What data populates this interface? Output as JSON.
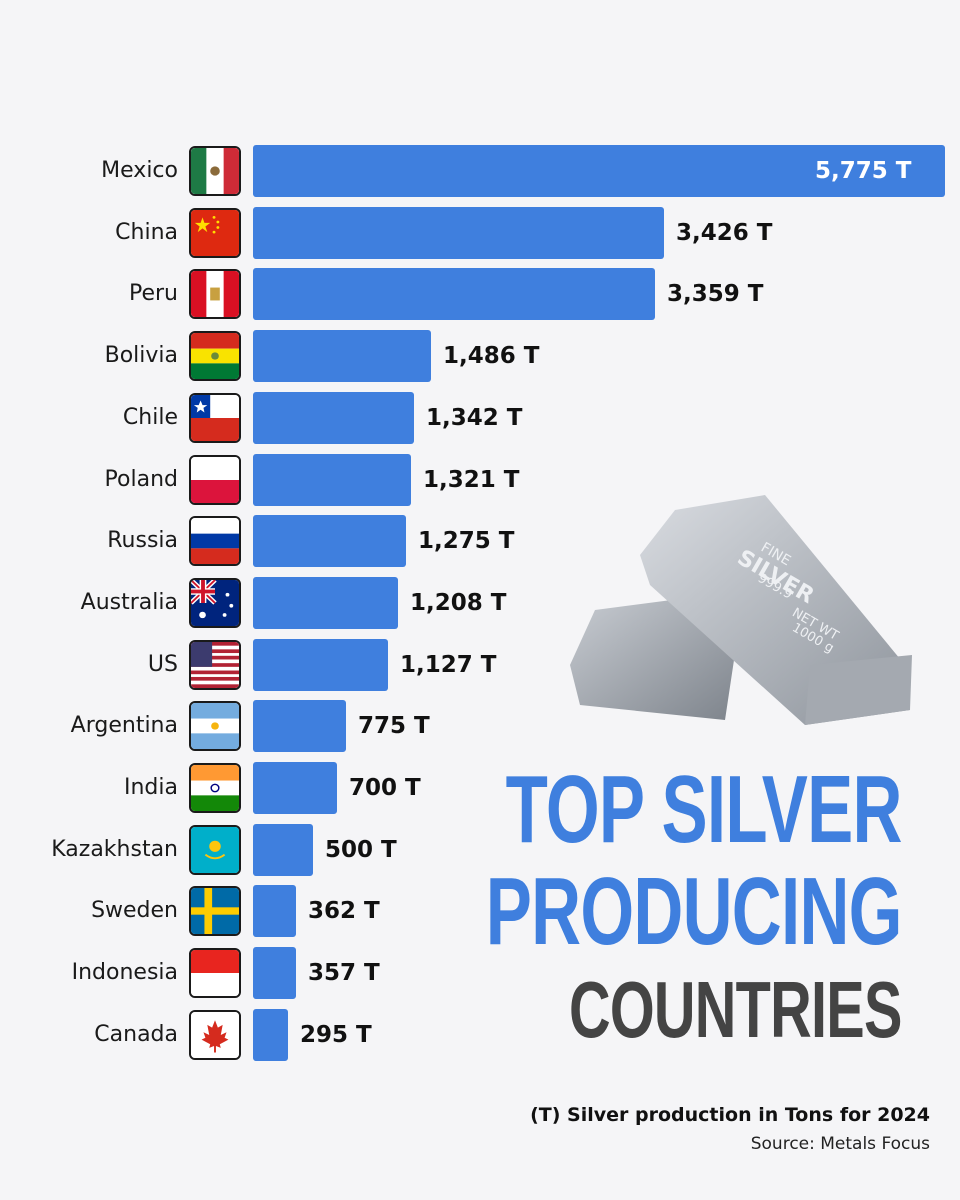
{
  "chart_data": {
    "type": "bar",
    "orientation": "horizontal",
    "title": "TOP SILVER PRODUCING COUNTRIES",
    "subtitle": "(T) Silver production in Tons for 2024",
    "source": "Source: Metals Focus",
    "xlabel": "",
    "ylabel": "",
    "unit": "T",
    "categories": [
      "Mexico",
      "China",
      "Peru",
      "Bolivia",
      "Chile",
      "Poland",
      "Russia",
      "Australia",
      "US",
      "Argentina",
      "India",
      "Kazakhstan",
      "Sweden",
      "Indonesia",
      "Canada"
    ],
    "values": [
      5775,
      3426,
      3359,
      1486,
      1342,
      1321,
      1275,
      1208,
      1127,
      775,
      700,
      500,
      362,
      357,
      295
    ],
    "value_labels": [
      "5,775 T",
      "3,426 T",
      "3,359 T",
      "1,486 T",
      "1,342 T",
      "1,321 T",
      "1,275 T",
      "1,208 T",
      "1,127 T",
      "775 T",
      "700 T",
      "500 T",
      "362 T",
      "357 T",
      "295 T"
    ],
    "grid": false,
    "legend": null,
    "bar_color": "#3f7fde"
  },
  "title": {
    "line1": "TOP SILVER",
    "line2": "PRODUCING",
    "line3": "COUNTRIES",
    "accent_color": "#3f7fde",
    "dark_color": "#444444"
  },
  "footer": {
    "note": "(T) Silver production in Tons for 2024",
    "source": "Source: Metals Focus"
  },
  "illustration": {
    "bar_text_line1": "FINE",
    "bar_text_line2": "SILVER",
    "bar_text_line3": "999.9",
    "bar_text_line4": "NET WT",
    "bar_text_line5": "1000 g"
  },
  "rows": [
    {
      "country": "Mexico",
      "flag": "mexico-flag",
      "label": "5,775 T"
    },
    {
      "country": "China",
      "flag": "china-flag",
      "label": "3,426 T"
    },
    {
      "country": "Peru",
      "flag": "peru-flag",
      "label": "3,359 T"
    },
    {
      "country": "Bolivia",
      "flag": "bolivia-flag",
      "label": "1,486 T"
    },
    {
      "country": "Chile",
      "flag": "chile-flag",
      "label": "1,342 T"
    },
    {
      "country": "Poland",
      "flag": "poland-flag",
      "label": "1,321 T"
    },
    {
      "country": "Russia",
      "flag": "russia-flag",
      "label": "1,275 T"
    },
    {
      "country": "Australia",
      "flag": "australia-flag",
      "label": "1,208 T"
    },
    {
      "country": "US",
      "flag": "us-flag",
      "label": "1,127 T"
    },
    {
      "country": "Argentina",
      "flag": "argentina-flag",
      "label": "775 T"
    },
    {
      "country": "India",
      "flag": "india-flag",
      "label": "700 T"
    },
    {
      "country": "Kazakhstan",
      "flag": "kazakhstan-flag",
      "label": "500 T"
    },
    {
      "country": "Sweden",
      "flag": "sweden-flag",
      "label": "362 T"
    },
    {
      "country": "Indonesia",
      "flag": "indonesia-flag",
      "label": "357 T"
    },
    {
      "country": "Canada",
      "flag": "canada-flag",
      "label": "295 T"
    }
  ]
}
